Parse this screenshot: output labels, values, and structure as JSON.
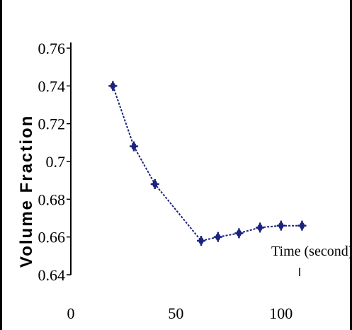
{
  "chart_data": {
    "type": "line",
    "ylabel": "Volume Fraction",
    "xlabel": "Time (second)",
    "x_ticks": [
      0,
      50,
      100
    ],
    "y_ticks": [
      "0.64",
      "0.66",
      "0.68",
      "0.7",
      "0.72",
      "0.74",
      "0.76"
    ],
    "xlim": [
      0,
      125
    ],
    "ylim": [
      0.64,
      0.76
    ],
    "grid": false,
    "series": [
      {
        "color": "#1a237e",
        "points": [
          {
            "x": 20,
            "y": 0.74
          },
          {
            "x": 30,
            "y": 0.708
          },
          {
            "x": 40,
            "y": 0.688
          },
          {
            "x": 62,
            "y": 0.658
          },
          {
            "x": 70,
            "y": 0.66
          },
          {
            "x": 80,
            "y": 0.662
          },
          {
            "x": 90,
            "y": 0.665
          },
          {
            "x": 100,
            "y": 0.666
          },
          {
            "x": 110,
            "y": 0.666
          }
        ]
      }
    ]
  }
}
